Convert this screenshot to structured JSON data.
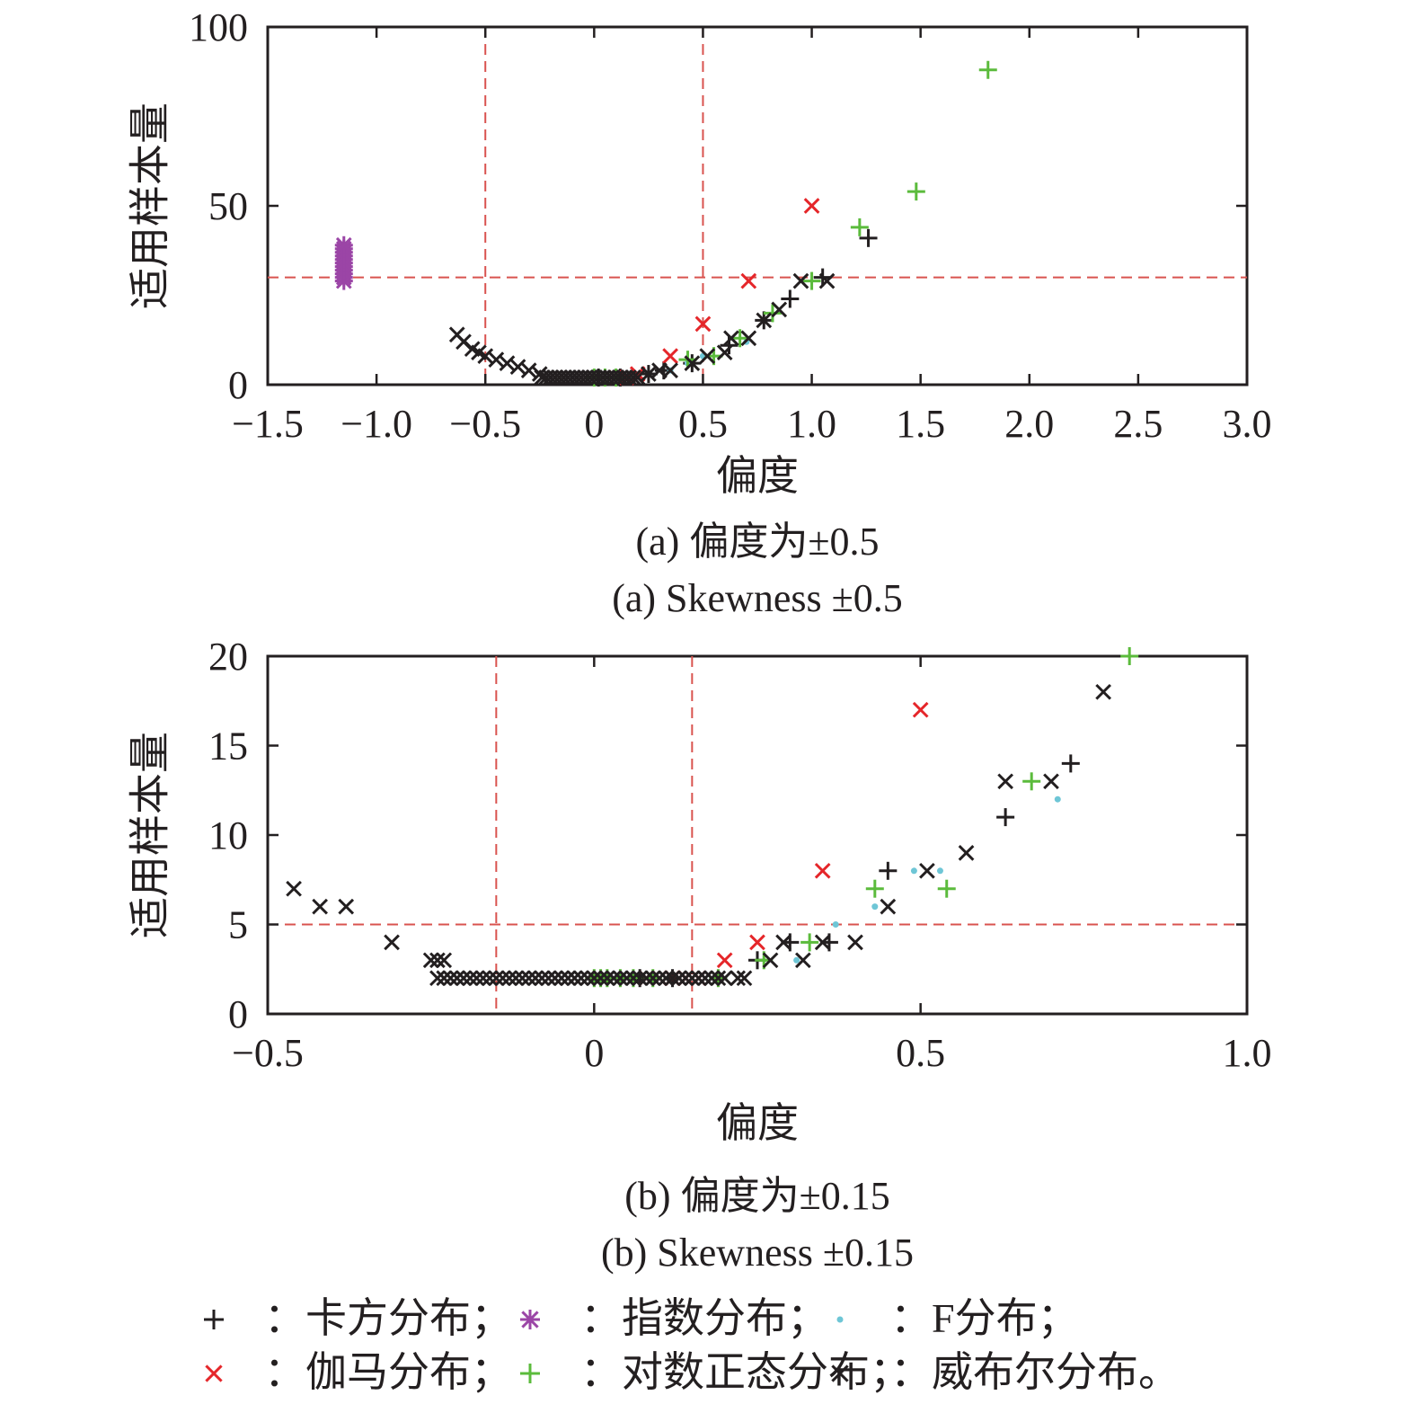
{
  "charts": [
    {
      "id": "a",
      "type": "scatter",
      "xlabel": "偏度",
      "ylabel": "适用样本量",
      "xlim": [
        -1.5,
        3.0
      ],
      "ylim": [
        0,
        100
      ],
      "xticks": [
        -1.5,
        -1.0,
        -0.5,
        0,
        0.5,
        1.0,
        1.5,
        2.0,
        2.5,
        3.0
      ],
      "xtick_labels": [
        "−1.5",
        "−1.0",
        "−0.5",
        "0",
        "0.5",
        "1.0",
        "1.5",
        "2.0",
        "2.5",
        "3.0"
      ],
      "yticks": [
        0,
        50,
        100
      ],
      "ytick_labels": [
        "0",
        "50",
        "100"
      ],
      "reference_lines": {
        "x": [
          -0.5,
          0.5
        ],
        "y": [
          30
        ]
      },
      "caption_cn": "(a) 偏度为±0.5",
      "caption_en": "(a) Skewness ±0.5"
    },
    {
      "id": "b",
      "type": "scatter",
      "xlabel": "偏度",
      "ylabel": "适用样本量",
      "xlim": [
        -0.5,
        1.0
      ],
      "ylim": [
        0,
        20
      ],
      "xticks": [
        -0.5,
        0,
        0.5,
        1.0
      ],
      "xtick_labels": [
        "−0.5",
        "0",
        "0.5",
        "1.0"
      ],
      "yticks": [
        0,
        5,
        10,
        15,
        20
      ],
      "ytick_labels": [
        "0",
        "5",
        "10",
        "15",
        "20"
      ],
      "reference_lines": {
        "x": [
          -0.15,
          0.15
        ],
        "y": [
          5
        ]
      },
      "caption_cn": "(b) 偏度为±0.15",
      "caption_en": "(b) Skewness ±0.15"
    }
  ],
  "legend": [
    {
      "key": "chisq",
      "marker": "plus",
      "color": "#231f20",
      "label": "：卡方分布；"
    },
    {
      "key": "exp",
      "marker": "asterisk",
      "color": "#9b45a6",
      "label": "：指数分布；"
    },
    {
      "key": "f",
      "marker": "dot",
      "color": "#6ec6d6",
      "label": "：F分布；"
    },
    {
      "key": "gamma",
      "marker": "cross",
      "color": "#e5262a",
      "label": "：伽马分布；"
    },
    {
      "key": "lognorm",
      "marker": "plus",
      "color": "#5bbb3c",
      "label": "：对数正态分布；"
    },
    {
      "key": "weibull",
      "marker": "cross",
      "color": "#231f20",
      "label": "：威布尔分布。"
    }
  ],
  "colors": {
    "reference_line": "#d9534f",
    "axis": "#231f20"
  },
  "chart_data": [
    {
      "type": "scatter",
      "xlabel": "偏度",
      "ylabel": "适用样本量",
      "xlim": [
        -1.5,
        3.0
      ],
      "ylim": [
        0,
        100
      ],
      "series": [
        {
          "name": "卡方分布",
          "points": [
            [
              0.02,
              2
            ],
            [
              0.12,
              2
            ],
            [
              0.25,
              3
            ],
            [
              0.32,
              4
            ],
            [
              0.45,
              6
            ],
            [
              0.62,
              11
            ],
            [
              0.78,
              18
            ],
            [
              0.9,
              24
            ],
            [
              1.05,
              30
            ],
            [
              1.26,
              41
            ]
          ]
        },
        {
          "name": "指数分布",
          "points": [
            [
              -1.15,
              29
            ],
            [
              -1.15,
              30
            ],
            [
              -1.15,
              31
            ],
            [
              -1.15,
              32
            ],
            [
              -1.15,
              33
            ],
            [
              -1.15,
              34
            ],
            [
              -1.15,
              35
            ],
            [
              -1.15,
              36
            ],
            [
              -1.15,
              37
            ],
            [
              -1.15,
              38
            ],
            [
              -1.15,
              39
            ]
          ]
        },
        {
          "name": "F分布",
          "points": [
            [
              0.35,
              4
            ],
            [
              0.43,
              6
            ],
            [
              0.5,
              8
            ],
            [
              0.7,
              12
            ]
          ]
        },
        {
          "name": "伽马分布",
          "points": [
            [
              0.1,
              2
            ],
            [
              0.15,
              2
            ],
            [
              0.2,
              3
            ],
            [
              0.35,
              8
            ],
            [
              0.5,
              17
            ],
            [
              0.71,
              29
            ],
            [
              1.0,
              50
            ]
          ]
        },
        {
          "name": "对数正态分布",
          "points": [
            [
              0.0,
              2
            ],
            [
              0.05,
              2
            ],
            [
              0.1,
              2
            ],
            [
              0.43,
              7
            ],
            [
              0.55,
              8
            ],
            [
              0.67,
              13
            ],
            [
              0.82,
              20
            ],
            [
              1.0,
              29
            ],
            [
              1.22,
              44
            ],
            [
              1.48,
              54
            ],
            [
              1.81,
              88
            ]
          ]
        },
        {
          "name": "威布尔分布",
          "points": [
            [
              -0.63,
              14
            ],
            [
              -0.6,
              12
            ],
            [
              -0.56,
              10
            ],
            [
              -0.53,
              9
            ],
            [
              -0.5,
              8
            ],
            [
              -0.45,
              7
            ],
            [
              -0.4,
              6
            ],
            [
              -0.35,
              5
            ],
            [
              -0.3,
              4
            ],
            [
              -0.25,
              3
            ],
            [
              -0.24,
              2
            ],
            [
              -0.22,
              2
            ],
            [
              -0.2,
              2
            ],
            [
              -0.18,
              2
            ],
            [
              -0.16,
              2
            ],
            [
              -0.14,
              2
            ],
            [
              -0.12,
              2
            ],
            [
              -0.1,
              2
            ],
            [
              -0.08,
              2
            ],
            [
              -0.06,
              2
            ],
            [
              -0.04,
              2
            ],
            [
              -0.02,
              2
            ],
            [
              0.0,
              2
            ],
            [
              0.02,
              2
            ],
            [
              0.04,
              2
            ],
            [
              0.06,
              2
            ],
            [
              0.08,
              2
            ],
            [
              0.1,
              2
            ],
            [
              0.12,
              2
            ],
            [
              0.14,
              2
            ],
            [
              0.16,
              2
            ],
            [
              0.18,
              2
            ],
            [
              0.2,
              2
            ],
            [
              0.25,
              3
            ],
            [
              0.3,
              4
            ],
            [
              0.35,
              4
            ],
            [
              0.45,
              6
            ],
            [
              0.52,
              8
            ],
            [
              0.6,
              9
            ],
            [
              0.63,
              13
            ],
            [
              0.71,
              13
            ],
            [
              0.78,
              18
            ],
            [
              0.85,
              21
            ],
            [
              0.95,
              29
            ],
            [
              1.07,
              29
            ]
          ]
        }
      ]
    },
    {
      "type": "scatter",
      "xlabel": "偏度",
      "ylabel": "适用样本量",
      "xlim": [
        -0.5,
        1.0
      ],
      "ylim": [
        0,
        20
      ],
      "series": [
        {
          "name": "卡方分布",
          "points": [
            [
              0.07,
              2
            ],
            [
              0.12,
              2
            ],
            [
              0.25,
              3
            ],
            [
              0.3,
              4
            ],
            [
              0.36,
              4
            ],
            [
              0.45,
              8
            ],
            [
              0.63,
              11
            ],
            [
              0.73,
              14
            ]
          ]
        },
        {
          "name": "指数分布",
          "points": []
        },
        {
          "name": "F分布",
          "points": [
            [
              0.31,
              3
            ],
            [
              0.37,
              5
            ],
            [
              0.43,
              6
            ],
            [
              0.49,
              8
            ],
            [
              0.53,
              8
            ],
            [
              0.71,
              12
            ]
          ]
        },
        {
          "name": "伽马分布",
          "points": [
            [
              0.08,
              2
            ],
            [
              0.1,
              2
            ],
            [
              0.12,
              2
            ],
            [
              0.14,
              2
            ],
            [
              0.16,
              2
            ],
            [
              0.2,
              3
            ],
            [
              0.25,
              4
            ],
            [
              0.35,
              8
            ],
            [
              0.5,
              17
            ]
          ]
        },
        {
          "name": "对数正态分布",
          "points": [
            [
              0.0,
              2
            ],
            [
              0.01,
              2
            ],
            [
              0.02,
              2
            ],
            [
              0.04,
              2
            ],
            [
              0.06,
              2
            ],
            [
              0.09,
              2
            ],
            [
              0.19,
              2
            ],
            [
              0.26,
              3
            ],
            [
              0.33,
              4
            ],
            [
              0.43,
              7
            ],
            [
              0.54,
              7
            ],
            [
              0.67,
              13
            ],
            [
              0.82,
              20
            ]
          ]
        },
        {
          "name": "威布尔分布",
          "points": [
            [
              -0.46,
              7
            ],
            [
              -0.42,
              6
            ],
            [
              -0.38,
              6
            ],
            [
              -0.31,
              4
            ],
            [
              -0.25,
              3
            ],
            [
              -0.24,
              3
            ],
            [
              -0.23,
              3
            ],
            [
              -0.24,
              2
            ],
            [
              -0.23,
              2
            ],
            [
              -0.22,
              2
            ],
            [
              -0.21,
              2
            ],
            [
              -0.2,
              2
            ],
            [
              -0.19,
              2
            ],
            [
              -0.18,
              2
            ],
            [
              -0.17,
              2
            ],
            [
              -0.16,
              2
            ],
            [
              -0.15,
              2
            ],
            [
              -0.14,
              2
            ],
            [
              -0.13,
              2
            ],
            [
              -0.12,
              2
            ],
            [
              -0.11,
              2
            ],
            [
              -0.1,
              2
            ],
            [
              -0.09,
              2
            ],
            [
              -0.08,
              2
            ],
            [
              -0.07,
              2
            ],
            [
              -0.06,
              2
            ],
            [
              -0.05,
              2
            ],
            [
              -0.04,
              2
            ],
            [
              -0.03,
              2
            ],
            [
              -0.02,
              2
            ],
            [
              -0.01,
              2
            ],
            [
              0.0,
              2
            ],
            [
              0.01,
              2
            ],
            [
              0.02,
              2
            ],
            [
              0.03,
              2
            ],
            [
              0.04,
              2
            ],
            [
              0.05,
              2
            ],
            [
              0.06,
              2
            ],
            [
              0.07,
              2
            ],
            [
              0.08,
              2
            ],
            [
              0.09,
              2
            ],
            [
              0.1,
              2
            ],
            [
              0.11,
              2
            ],
            [
              0.12,
              2
            ],
            [
              0.13,
              2
            ],
            [
              0.14,
              2
            ],
            [
              0.15,
              2
            ],
            [
              0.16,
              2
            ],
            [
              0.17,
              2
            ],
            [
              0.18,
              2
            ],
            [
              0.19,
              2
            ],
            [
              0.2,
              2
            ],
            [
              0.22,
              2
            ],
            [
              0.23,
              2
            ],
            [
              0.27,
              3
            ],
            [
              0.29,
              4
            ],
            [
              0.32,
              3
            ],
            [
              0.35,
              4
            ],
            [
              0.4,
              4
            ],
            [
              0.45,
              6
            ],
            [
              0.51,
              8
            ],
            [
              0.57,
              9
            ],
            [
              0.63,
              13
            ],
            [
              0.7,
              13
            ],
            [
              0.78,
              18
            ]
          ]
        }
      ]
    }
  ]
}
